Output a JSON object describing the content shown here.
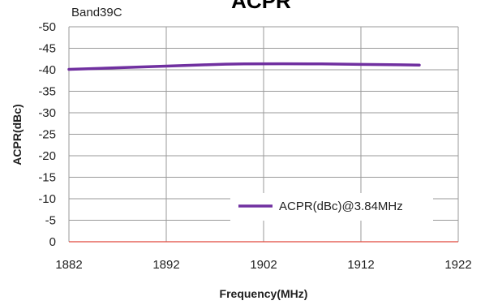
{
  "chart_data": {
    "type": "line",
    "title": "ACPR",
    "subtitle": "Band39C",
    "xlabel": "Frequency(MHz)",
    "ylabel": "ACPR(dBc)",
    "xlim": [
      1882,
      1922
    ],
    "ylim": [
      0,
      -50
    ],
    "y_axis_inverted": true,
    "grid": true,
    "legend_position": "bottom-right",
    "x_ticks": [
      "1882",
      "1892",
      "1902",
      "1912",
      "1922"
    ],
    "y_ticks": [
      "-50",
      "-45",
      "-40",
      "-35",
      "-30",
      "-25",
      "-20",
      "-15",
      "-10",
      "-5",
      "0"
    ],
    "series": [
      {
        "name": "ACPR(dBc)@3.84MHz",
        "color": "#7030a0",
        "x": [
          1882,
          1886,
          1890,
          1894,
          1898,
          1902,
          1906,
          1910,
          1914,
          1918
        ],
        "y": [
          -40.1,
          -40.4,
          -40.7,
          -41.0,
          -41.3,
          -41.4,
          -41.4,
          -41.3,
          -41.2,
          -41.1
        ]
      }
    ]
  }
}
